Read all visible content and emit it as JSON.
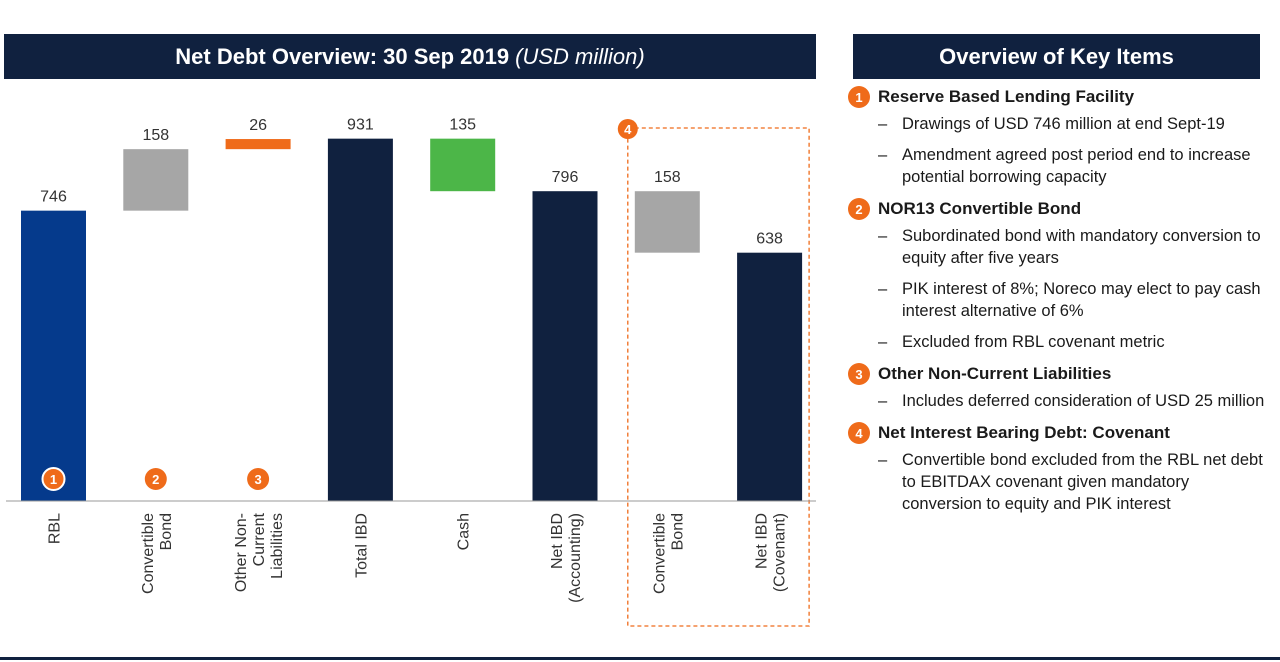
{
  "left_panel": {
    "title": "Net Debt Overview: 30 Sep 2019",
    "subtitle": "(USD million)"
  },
  "right_panel": {
    "title": "Overview of Key Items",
    "items": [
      {
        "num": "1",
        "heading": "Reserve Based Lending Facility",
        "bullets": [
          "Drawings of USD 746 million at end Sept-19",
          "Amendment agreed post period end to increase potential borrowing capacity"
        ]
      },
      {
        "num": "2",
        "heading": "NOR13 Convertible Bond",
        "bullets": [
          "Subordinated bond with mandatory conversion to equity after five years",
          "PIK interest of 8%; Noreco may elect to pay cash interest alternative of 6%",
          "Excluded from RBL covenant metric"
        ]
      },
      {
        "num": "3",
        "heading": "Other Non-Current Liabilities",
        "bullets": [
          "Includes deferred consideration of USD 25 million"
        ]
      },
      {
        "num": "4",
        "heading": "Net Interest Bearing Debt: Covenant",
        "bullets": [
          "Convertible bond excluded from the RBL net debt to EBITDAX covenant given mandatory conversion to equity and PIK interest"
        ]
      }
    ]
  },
  "chart_data": {
    "type": "bar",
    "subtype": "waterfall",
    "categories": [
      "RBL",
      "Convertible Bond",
      "Other Non-Current Liabilities",
      "Total IBD",
      "Cash",
      "Net IBD (Accounting)",
      "Convertible Bond",
      "Net IBD (Covenant)"
    ],
    "category_lines": [
      [
        "RBL"
      ],
      [
        "Convertible",
        "Bond"
      ],
      [
        "Other Non-",
        "Current",
        "Liabilities"
      ],
      [
        "Total IBD"
      ],
      [
        "Cash"
      ],
      [
        "Net IBD",
        "(Accounting)"
      ],
      [
        "Convertible",
        "Bond"
      ],
      [
        "Net IBD",
        "(Covenant)"
      ]
    ],
    "bars": [
      {
        "base": 0,
        "value": 746,
        "label": "746",
        "color": "#053a8c",
        "marker": "1"
      },
      {
        "base": 746,
        "value": 158,
        "label": "158",
        "color": "#a6a6a6",
        "marker": "2"
      },
      {
        "base": 904,
        "value": 26,
        "label": "26",
        "color": "#ef6b1a",
        "marker": "3"
      },
      {
        "base": 0,
        "value": 931,
        "label": "931",
        "color": "#10213f"
      },
      {
        "base": 796,
        "value": 135,
        "label": "135",
        "color": "#4cb648"
      },
      {
        "base": 0,
        "value": 796,
        "label": "796",
        "color": "#10213f"
      },
      {
        "base": 638,
        "value": 158,
        "label": "158",
        "color": "#a6a6a6"
      },
      {
        "base": 0,
        "value": 638,
        "label": "638",
        "color": "#10213f"
      }
    ],
    "highlight_group": {
      "marker": "4",
      "categories": [
        6,
        7
      ]
    },
    "colors": {
      "accent": "#ef6b1a",
      "navy": "#10213f"
    }
  }
}
